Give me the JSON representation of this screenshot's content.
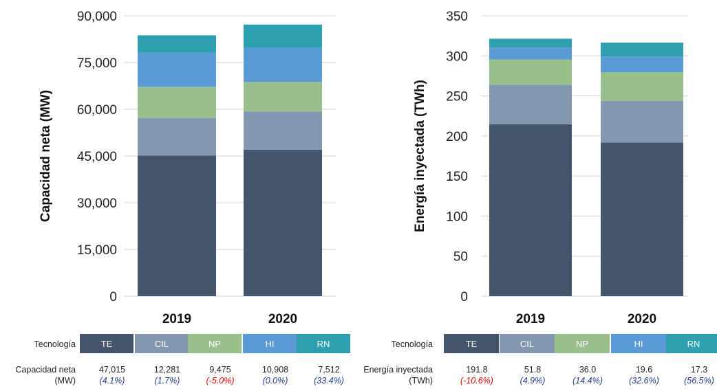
{
  "colors": {
    "TE": "#44546a",
    "CIL": "#8497b0",
    "NP": "#98bf8c",
    "HI": "#5b9bd5",
    "RN": "#2e9fae",
    "positive_change": "#1f3c88",
    "negative_change": "#e00000",
    "grid": "#d0d0d0"
  },
  "chart_data": [
    {
      "type": "bar",
      "stacked": true,
      "ylabel": "Capacidad neta (MW)",
      "xlabel": "",
      "categories": [
        "2019",
        "2020"
      ],
      "ylim": [
        0,
        90000
      ],
      "yticks": [
        0,
        15000,
        30000,
        45000,
        60000,
        75000,
        90000
      ],
      "ytick_labels": [
        "0",
        "15,000",
        "30,000",
        "45,000",
        "60,000",
        "75,000",
        "90,000"
      ],
      "grid": true,
      "series": [
        {
          "name": "TE",
          "values": [
            45150,
            47015
          ]
        },
        {
          "name": "CIL",
          "values": [
            12075,
            12281
          ]
        },
        {
          "name": "NP",
          "values": [
            9975,
            9475
          ]
        },
        {
          "name": "HI",
          "values": [
            10908,
            10908
          ]
        },
        {
          "name": "RN",
          "values": [
            5625,
            7512
          ]
        }
      ],
      "table": {
        "header_label": "Tecnología",
        "row_label_line1": "Capacidad neta",
        "row_label_line2": "(MW)",
        "entries": [
          {
            "tech": "TE",
            "value": "47,015",
            "change": "(4.1%)",
            "sign": "positive"
          },
          {
            "tech": "CIL",
            "value": "12,281",
            "change": "(1.7%)",
            "sign": "positive"
          },
          {
            "tech": "NP",
            "value": "9,475",
            "change": "(-5.0%)",
            "sign": "negative"
          },
          {
            "tech": "HI",
            "value": "10,908",
            "change": "(0.0%)",
            "sign": "positive"
          },
          {
            "tech": "RN",
            "value": "7,512",
            "change": "(33.4%)",
            "sign": "positive"
          }
        ]
      }
    },
    {
      "type": "bar",
      "stacked": true,
      "ylabel": "Energía inyectada (TWh)",
      "xlabel": "",
      "categories": [
        "2019",
        "2020"
      ],
      "ylim": [
        0,
        350
      ],
      "yticks": [
        0,
        50,
        100,
        150,
        200,
        250,
        300,
        350
      ],
      "ytick_labels": [
        "0",
        "50",
        "100",
        "150",
        "200",
        "250",
        "300",
        "350"
      ],
      "grid": true,
      "series": [
        {
          "name": "TE",
          "values": [
            214.6,
            191.8
          ]
        },
        {
          "name": "CIL",
          "values": [
            49.4,
            51.8
          ]
        },
        {
          "name": "NP",
          "values": [
            31.5,
            36.0
          ]
        },
        {
          "name": "HI",
          "values": [
            14.8,
            19.6
          ]
        },
        {
          "name": "RN",
          "values": [
            11.1,
            17.3
          ]
        }
      ],
      "table": {
        "header_label": "Tecnología",
        "row_label_line1": "Energía inyectada",
        "row_label_line2": "(TWh)",
        "entries": [
          {
            "tech": "TE",
            "value": "191.8",
            "change": "(-10.6%)",
            "sign": "negative"
          },
          {
            "tech": "CIL",
            "value": "51.8",
            "change": "(4.9%)",
            "sign": "positive"
          },
          {
            "tech": "NP",
            "value": "36.0",
            "change": "(14.4%)",
            "sign": "positive"
          },
          {
            "tech": "HI",
            "value": "19.6",
            "change": "(32.6%)",
            "sign": "positive"
          },
          {
            "tech": "RN",
            "value": "17.3",
            "change": "(56.5%)",
            "sign": "positive"
          }
        ]
      }
    }
  ]
}
